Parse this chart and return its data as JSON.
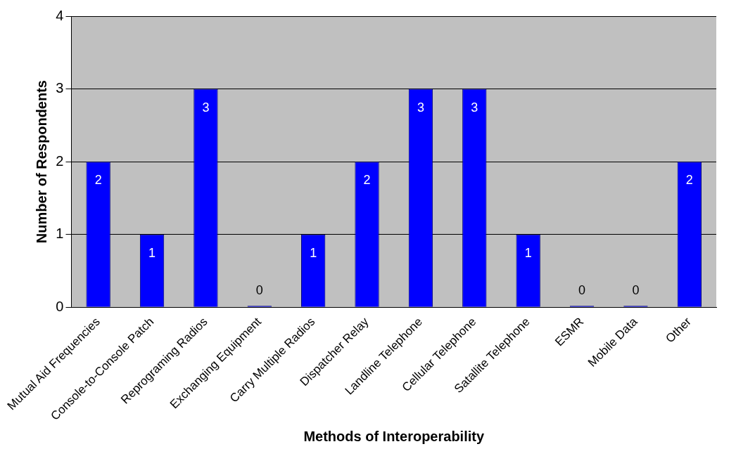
{
  "chart_data": {
    "type": "bar",
    "xlabel": "Methods of Interoperability",
    "ylabel": "Number of Respondents",
    "categories": [
      "Mutual Aid Frequencies",
      "Console-to-Console Patch",
      "Reprograming Radios",
      "Exchanging Equipment",
      "Carry Multiple Radios",
      "Dispatcher Relay",
      "Landline Telephone",
      "Cellular Telephone",
      "Satallite Telephone",
      "ESMR",
      "Mobile Data",
      "Other"
    ],
    "values": [
      2,
      1,
      3,
      0,
      1,
      2,
      3,
      3,
      1,
      0,
      0,
      2
    ],
    "color": "#0000ff",
    "ylim": [
      0,
      4
    ],
    "yticks": [
      0,
      1,
      2,
      3,
      4
    ],
    "grid": "y",
    "legend": false,
    "data_labels": true
  }
}
